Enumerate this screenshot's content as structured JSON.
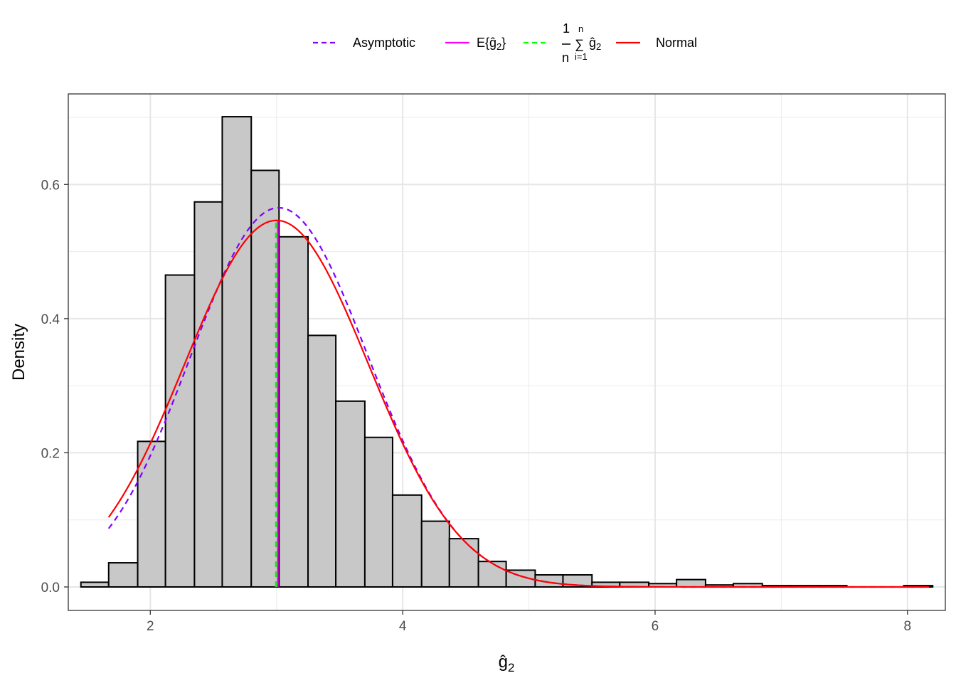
{
  "chart_data": {
    "type": "histogram",
    "title": "",
    "xlabel": "ĝ",
    "xlabel_sub": "2",
    "ylabel": "Density",
    "xlim": [
      1.35,
      8.3
    ],
    "ylim": [
      -0.035,
      0.735
    ],
    "x_ticks": [
      {
        "value": 2,
        "label": "2"
      },
      {
        "value": 4,
        "label": "4"
      },
      {
        "value": 6,
        "label": "6"
      },
      {
        "value": 8,
        "label": "8"
      }
    ],
    "y_ticks": [
      {
        "value": 0.0,
        "label": "0.0"
      },
      {
        "value": 0.2,
        "label": "0.2"
      },
      {
        "value": 0.4,
        "label": "0.4"
      },
      {
        "value": 0.6,
        "label": "0.6"
      }
    ],
    "grid": true,
    "legend_position": "top",
    "bar_fill": "#c8c8c8",
    "bar_stroke": "#000000",
    "bins": [
      {
        "x0": 1.45,
        "x1": 1.67,
        "density": 0.007
      },
      {
        "x0": 1.67,
        "x1": 1.9,
        "density": 0.036
      },
      {
        "x0": 1.9,
        "x1": 2.12,
        "density": 0.217
      },
      {
        "x0": 2.12,
        "x1": 2.35,
        "density": 0.465
      },
      {
        "x0": 2.35,
        "x1": 2.57,
        "density": 0.574
      },
      {
        "x0": 2.57,
        "x1": 2.8,
        "density": 0.701
      },
      {
        "x0": 2.8,
        "x1": 3.02,
        "density": 0.621
      },
      {
        "x0": 3.02,
        "x1": 3.25,
        "density": 0.522
      },
      {
        "x0": 3.25,
        "x1": 3.47,
        "density": 0.375
      },
      {
        "x0": 3.47,
        "x1": 3.7,
        "density": 0.277
      },
      {
        "x0": 3.7,
        "x1": 3.92,
        "density": 0.223
      },
      {
        "x0": 3.92,
        "x1": 4.15,
        "density": 0.137
      },
      {
        "x0": 4.15,
        "x1": 4.37,
        "density": 0.098
      },
      {
        "x0": 4.37,
        "x1": 4.6,
        "density": 0.072
      },
      {
        "x0": 4.6,
        "x1": 4.82,
        "density": 0.038
      },
      {
        "x0": 4.82,
        "x1": 5.05,
        "density": 0.025
      },
      {
        "x0": 5.05,
        "x1": 5.27,
        "density": 0.018
      },
      {
        "x0": 5.27,
        "x1": 5.5,
        "density": 0.018
      },
      {
        "x0": 5.5,
        "x1": 5.72,
        "density": 0.007
      },
      {
        "x0": 5.72,
        "x1": 5.95,
        "density": 0.007
      },
      {
        "x0": 5.95,
        "x1": 6.17,
        "density": 0.005
      },
      {
        "x0": 6.17,
        "x1": 6.4,
        "density": 0.011
      },
      {
        "x0": 6.4,
        "x1": 6.62,
        "density": 0.003
      },
      {
        "x0": 6.62,
        "x1": 6.85,
        "density": 0.005
      },
      {
        "x0": 6.85,
        "x1": 7.07,
        "density": 0.002
      },
      {
        "x0": 7.07,
        "x1": 7.3,
        "density": 0.002
      },
      {
        "x0": 7.3,
        "x1": 7.52,
        "density": 0.002
      },
      {
        "x0": 7.52,
        "x1": 7.75,
        "density": 0.0
      },
      {
        "x0": 7.75,
        "x1": 7.97,
        "density": 0.0
      },
      {
        "x0": 7.97,
        "x1": 8.2,
        "density": 0.002
      }
    ],
    "curves": [
      {
        "name": "Asymptotic",
        "color": "#8000ff",
        "dash": true,
        "mean": 3.0,
        "sd": 0.775,
        "skew": 0.6,
        "x_from": 1.67,
        "x_to": 8.17
      },
      {
        "name": "Normal",
        "color": "#ff0000",
        "dash": false,
        "mean": 3.0,
        "sd": 0.73,
        "skew": 0.0,
        "x_from": 1.67,
        "x_to": 8.17
      }
    ],
    "vlines": [
      {
        "name": "E{ĝ2}",
        "color": "#ff00ff",
        "dash": false,
        "x": 3.01
      },
      {
        "name": "1/n Σ ĝ2",
        "color": "#00ff00",
        "dash": true,
        "x": 2.995
      }
    ],
    "legend": {
      "asymptotic": "Asymptotic",
      "expectation": "E{ĝ",
      "expectation_sub": "2",
      "expectation_close": "}",
      "mean_num": "1",
      "mean_den": "n",
      "mean_top": "n",
      "mean_bottom": "i=1",
      "mean_sigma": "∑",
      "mean_g": "ĝ",
      "mean_sub": "2",
      "normal": "Normal"
    }
  }
}
